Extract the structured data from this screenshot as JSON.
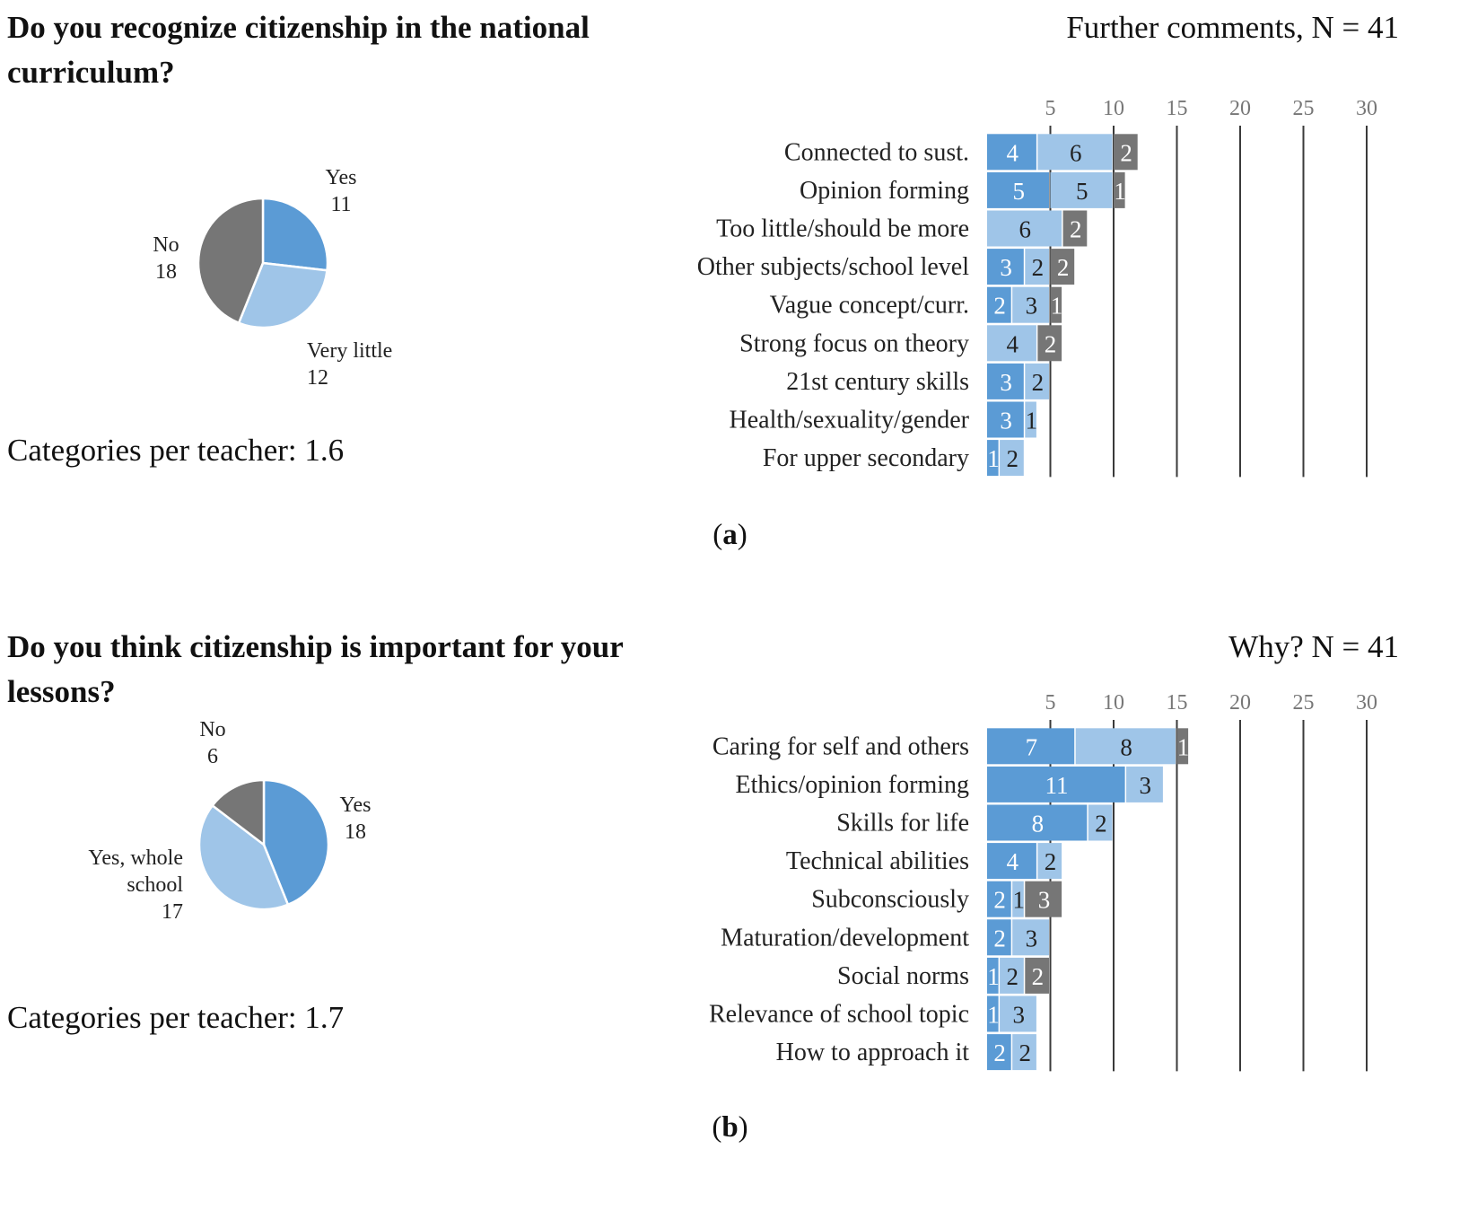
{
  "colors": {
    "yes": "#5b9bd5",
    "partial": "#9fc5e8",
    "no": "#767676",
    "grid": "#3a3a3a"
  },
  "panels": [
    {
      "question": "Do you recognize citizenship in the national curriculum?",
      "categories_text": "Categories per teacher: 1.6",
      "stack_title": "Further comments, N = 41",
      "label": {
        "open": "(",
        "letter": "a",
        "close": ")"
      }
    },
    {
      "question": "Do you think citizenship is important for your lessons?",
      "categories_text": "Categories per teacher: 1.7",
      "stack_title": "Why? N = 41",
      "label": {
        "open": "(",
        "letter": "b",
        "close": ")"
      }
    }
  ],
  "chart_data": [
    {
      "type": "pie",
      "title": "Do you recognize citizenship in the national curriculum?",
      "slices": [
        {
          "label": "Yes",
          "value": 11,
          "color": "#5b9bd5"
        },
        {
          "label": "Very little",
          "value": 12,
          "color": "#9fc5e8"
        },
        {
          "label": "No",
          "value": 18,
          "color": "#767676"
        }
      ]
    },
    {
      "type": "bar",
      "orientation": "horizontal-stacked",
      "title": "Further comments, N = 41",
      "xlim": [
        0,
        30
      ],
      "ticks": [
        5,
        10,
        15,
        20,
        25,
        30
      ],
      "categories": [
        "Connected to sust.",
        "Opinion forming",
        "Too little/should be more",
        "Other subjects/school level",
        "Vague concept/curr.",
        "Strong focus on theory",
        "21st century skills",
        "Health/sexuality/gender",
        "For upper secondary"
      ],
      "series": [
        {
          "name": "Yes",
          "color": "#5b9bd5",
          "values": [
            4,
            5,
            0,
            3,
            2,
            0,
            3,
            3,
            1
          ]
        },
        {
          "name": "Very little",
          "color": "#9fc5e8",
          "values": [
            6,
            5,
            6,
            2,
            3,
            4,
            2,
            1,
            2
          ]
        },
        {
          "name": "No",
          "color": "#767676",
          "values": [
            2,
            1,
            2,
            2,
            1,
            2,
            0,
            0,
            0
          ]
        }
      ]
    },
    {
      "type": "pie",
      "title": "Do you think citizenship is important for your lessons?",
      "slices": [
        {
          "label": "Yes",
          "value": 18,
          "color": "#5b9bd5"
        },
        {
          "label": "Yes, whole school",
          "value": 17,
          "color": "#9fc5e8"
        },
        {
          "label": "No",
          "value": 6,
          "color": "#767676"
        }
      ]
    },
    {
      "type": "bar",
      "orientation": "horizontal-stacked",
      "title": "Why? N = 41",
      "xlim": [
        0,
        30
      ],
      "ticks": [
        5,
        10,
        15,
        20,
        25,
        30
      ],
      "categories": [
        "Caring for self and others",
        "Ethics/opinion forming",
        "Skills for life",
        "Technical abilities",
        "Subconsciously",
        "Maturation/development",
        "Social norms",
        "Relevance of school topic",
        "How to approach it"
      ],
      "series": [
        {
          "name": "Yes",
          "color": "#5b9bd5",
          "values": [
            7,
            11,
            8,
            4,
            2,
            2,
            1,
            1,
            2
          ]
        },
        {
          "name": "Yes, whole school",
          "color": "#9fc5e8",
          "values": [
            8,
            3,
            2,
            2,
            1,
            3,
            2,
            3,
            2
          ]
        },
        {
          "name": "No",
          "color": "#767676",
          "values": [
            1,
            0,
            0,
            0,
            3,
            0,
            2,
            0,
            0
          ]
        }
      ]
    }
  ]
}
